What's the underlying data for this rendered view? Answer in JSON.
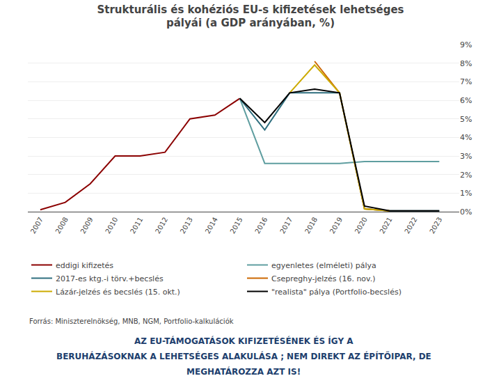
{
  "chart_data": {
    "type": "line",
    "title": "Strukturális és kohéziós EU-s kifizetések lehetséges\npályái (a GDP arányában, %)",
    "x": [
      2007,
      2008,
      2009,
      2010,
      2011,
      2012,
      2013,
      2014,
      2015,
      2016,
      2017,
      2018,
      2019,
      2020,
      2021,
      2022,
      2023
    ],
    "series": [
      {
        "name": "eddigi kifizetés",
        "color": "#8B0000",
        "values": [
          0.1,
          0.5,
          1.5,
          3.0,
          3.0,
          3.2,
          5.0,
          5.2,
          6.1,
          null,
          null,
          null,
          null,
          null,
          null,
          null,
          null
        ]
      },
      {
        "name": "egyenletes (elméleti) pálya",
        "color": "#5f9ea0",
        "values": [
          null,
          null,
          null,
          null,
          null,
          null,
          null,
          null,
          6.1,
          2.6,
          2.6,
          2.6,
          2.6,
          2.7,
          2.7,
          2.7,
          2.7
        ]
      },
      {
        "name": "2017-es ktg.-i törv.+becslés",
        "color": "#2e6e7e",
        "values": [
          null,
          null,
          null,
          null,
          null,
          null,
          null,
          null,
          6.1,
          4.4,
          6.4,
          6.4,
          6.4,
          0.15,
          0.05,
          0.05,
          0.05
        ]
      },
      {
        "name": "Csepreghy-jelzés (16. nov.)",
        "color": "#cc6600",
        "values": [
          null,
          null,
          null,
          null,
          null,
          null,
          null,
          null,
          null,
          null,
          null,
          8.1,
          6.4,
          0.15,
          0.05,
          null,
          null
        ]
      },
      {
        "name": "Lázár-jelzés és becslés (15. okt.)",
        "color": "#ccaa00",
        "values": [
          null,
          null,
          null,
          null,
          null,
          null,
          null,
          null,
          null,
          null,
          6.4,
          7.9,
          6.4,
          0.15,
          0.05,
          null,
          null
        ]
      },
      {
        "name": "\"realista\" pálya (Portfolio-becslés)",
        "color": "#000000",
        "values": [
          null,
          null,
          null,
          null,
          null,
          null,
          null,
          null,
          6.1,
          4.8,
          6.4,
          6.6,
          6.4,
          0.3,
          0.05,
          0.05,
          0.05
        ]
      }
    ],
    "xlim": [
      2006.5,
      2023.8
    ],
    "xticks": [
      2007,
      2008,
      2009,
      2010,
      2011,
      2012,
      2013,
      2014,
      2015,
      2016,
      2017,
      2018,
      2019,
      2020,
      2021,
      2022,
      2023
    ],
    "ylim": [
      0,
      9
    ],
    "yticks": [
      {
        "value": 0,
        "label": "0%"
      },
      {
        "value": 1,
        "label": "1%"
      },
      {
        "value": 2,
        "label": "2%"
      },
      {
        "value": 3,
        "label": "3%"
      },
      {
        "value": 4,
        "label": "4%"
      },
      {
        "value": 5,
        "label": "5%"
      },
      {
        "value": 6,
        "label": "6%"
      },
      {
        "value": 7,
        "label": "7%"
      },
      {
        "value": 8,
        "label": "8%"
      },
      {
        "value": 9,
        "label": "9%"
      }
    ],
    "grid": true,
    "legend": "bottom",
    "annotations": [
      "Forrás: Miniszterelnökség, MNB, NGM, Portfolio-kalkulációk",
      "AZ EU-TÁMOGATÁSOK KIFIZETÉSÉNEK ÉS ÍGY A",
      "BERUHÁZÁSOKNAK A LEHETSÉGES ALAKULÁSA ; NEM DIREKT AZ ÉPÍTŐIPAR, DE",
      "MEGHATÁROZZA AZT IS!"
    ]
  }
}
